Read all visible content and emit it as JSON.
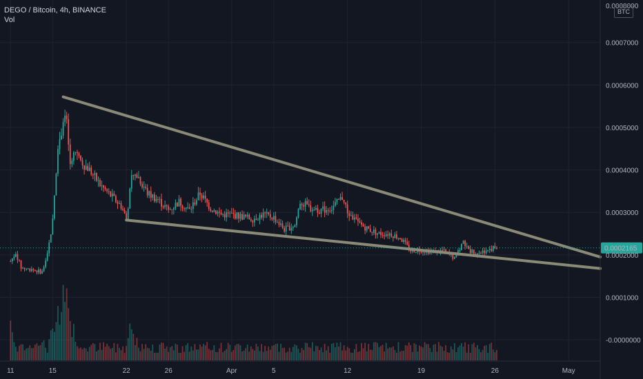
{
  "header": {
    "symbol_line": "DEGO / Bitcoin, 4h, BINANCE",
    "volume_label": "Vol"
  },
  "currency_badge": "BTC",
  "colors": {
    "background": "#131722",
    "up": "#26a69a",
    "down": "#ef5350",
    "trendline": "#8b8a76",
    "last_price": "#26a69a"
  },
  "chart_data": {
    "type": "candlestick",
    "title": "",
    "price_axis": {
      "ticks": [
        "0.0007000",
        "0.0006000",
        "0.0005000",
        "0.0004000",
        "0.0003000",
        "0.0002000",
        "0.0001000",
        "-0.0000000"
      ],
      "tick_values": [
        0.0007,
        0.0006,
        0.0005,
        0.0004,
        0.0003,
        0.0002,
        0.0001,
        0.0
      ],
      "top_partial_label": "0.0008000",
      "ylim": [
        -5e-05,
        0.0008
      ]
    },
    "time_axis": {
      "labels": [
        "11",
        "15",
        "22",
        "26",
        "Apr",
        "5",
        "12",
        "19",
        "26",
        "May"
      ],
      "label_days": [
        0,
        4,
        11,
        15,
        21,
        25,
        32,
        39,
        46,
        53
      ],
      "xlim": [
        -1.0,
        56.0
      ]
    },
    "last_price": {
      "value": 0.0002165,
      "label": "0.0002165"
    },
    "trendlines": [
      {
        "name": "upper",
        "from": [
          5.0,
          0.000572
        ],
        "to": [
          56.0,
          0.000195
        ]
      },
      {
        "name": "lower",
        "from": [
          11.0,
          0.000282
        ],
        "to": [
          56.0,
          0.000168
        ]
      }
    ],
    "price_path": [
      [
        0.0,
        0.000185
      ],
      [
        0.5,
        0.000205
      ],
      [
        1.0,
        0.00017
      ],
      [
        2.0,
        0.000165
      ],
      [
        3.0,
        0.00016
      ],
      [
        3.5,
        0.0002
      ],
      [
        4.0,
        0.00028
      ],
      [
        4.5,
        0.00046
      ],
      [
        5.0,
        0.00051
      ],
      [
        5.3,
        0.00052
      ],
      [
        5.6,
        0.00041
      ],
      [
        6.0,
        0.00045
      ],
      [
        6.5,
        0.000425
      ],
      [
        7.5,
        0.0004
      ],
      [
        8.5,
        0.000365
      ],
      [
        9.5,
        0.00034
      ],
      [
        10.5,
        0.000315
      ],
      [
        11.0,
        0.000285
      ],
      [
        11.5,
        0.00038
      ],
      [
        12.0,
        0.00039
      ],
      [
        13.0,
        0.000345
      ],
      [
        14.0,
        0.00033
      ],
      [
        15.0,
        0.000305
      ],
      [
        16.0,
        0.000325
      ],
      [
        17.0,
        0.000305
      ],
      [
        18.0,
        0.000345
      ],
      [
        19.0,
        0.00031
      ],
      [
        20.0,
        0.000295
      ],
      [
        21.0,
        0.000295
      ],
      [
        22.0,
        0.00029
      ],
      [
        23.0,
        0.000285
      ],
      [
        24.0,
        0.000295
      ],
      [
        25.0,
        0.000288
      ],
      [
        26.0,
        0.00026
      ],
      [
        27.0,
        0.00027
      ],
      [
        27.5,
        0.000325
      ],
      [
        28.5,
        0.00031
      ],
      [
        29.5,
        0.000305
      ],
      [
        30.5,
        0.00031
      ],
      [
        31.5,
        0.000335
      ],
      [
        32.0,
        0.0003
      ],
      [
        33.0,
        0.000275
      ],
      [
        34.0,
        0.00026
      ],
      [
        35.0,
        0.00025
      ],
      [
        36.0,
        0.00025
      ],
      [
        37.0,
        0.00024
      ],
      [
        38.0,
        0.00021
      ],
      [
        39.0,
        0.000212
      ],
      [
        40.0,
        0.000207
      ],
      [
        41.0,
        0.00021
      ],
      [
        42.0,
        0.000195
      ],
      [
        42.5,
        0.000205
      ],
      [
        43.0,
        0.000232
      ],
      [
        43.5,
        0.00021
      ],
      [
        44.5,
        0.000205
      ],
      [
        45.5,
        0.000215
      ],
      [
        46.2,
        0.0002165
      ]
    ],
    "volume_spikes": [
      [
        0.0,
        0.55
      ],
      [
        1.0,
        0.25
      ],
      [
        3.0,
        0.3
      ],
      [
        4.0,
        0.55
      ],
      [
        4.5,
        0.75
      ],
      [
        5.0,
        1.0
      ],
      [
        5.3,
        0.85
      ],
      [
        5.6,
        0.5
      ],
      [
        6.0,
        0.4
      ],
      [
        11.5,
        0.55
      ],
      [
        12.0,
        0.3
      ],
      [
        28.5,
        0.2
      ],
      [
        32.0,
        0.15
      ],
      [
        42.5,
        0.2
      ],
      [
        43.0,
        0.22
      ],
      [
        45.5,
        0.12
      ]
    ]
  }
}
